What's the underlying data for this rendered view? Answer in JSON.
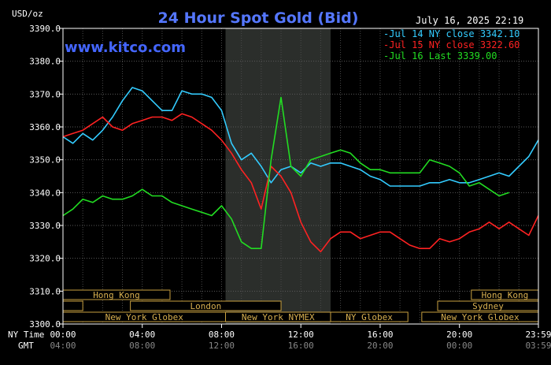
{
  "chart_data": {
    "type": "line",
    "title": "24 Hour Spot Gold (Bid)",
    "ylabel": "USD/oz",
    "website": "www.kitco.com",
    "timestamp": "July 16, 2025 22:19",
    "ylim": [
      3300,
      3390
    ],
    "yticks": [
      "3390.0",
      "3380.0",
      "3370.0",
      "3360.0",
      "3350.0",
      "3340.0",
      "3330.0",
      "3320.0",
      "3310.0",
      "3300.0"
    ],
    "x_row_labels": {
      "ny": "NY Time",
      "gmt": "GMT"
    },
    "xticks_ny": [
      "00:00",
      "04:00",
      "08:00",
      "12:00",
      "16:00",
      "20:00",
      "23:59"
    ],
    "xticks_gmt": [
      "04:00",
      "08:00",
      "12:00",
      "16:00",
      "20:00",
      "00:00",
      "03:59"
    ],
    "xtick_hours": [
      0,
      4,
      8,
      12,
      16,
      20,
      23.983
    ],
    "shaded_hours": [
      8.2,
      13.5
    ],
    "legend": [
      {
        "label": "Jul 14 NY close 3342.10",
        "color": "#33ccff"
      },
      {
        "label": "Jul 15 NY close 3322.60",
        "color": "#ff2222"
      },
      {
        "label": "Jul 16 Last 3339.00",
        "color": "#22dd22"
      }
    ],
    "sessions": [
      {
        "label": "Hong Kong",
        "start": 0,
        "end": 5.4,
        "row": 0
      },
      {
        "label": "Hong Kong",
        "start": 20.6,
        "end": 23.983,
        "row": 0
      },
      {
        "label": "",
        "start": 0,
        "end": 1.0,
        "row": 1
      },
      {
        "label": "London",
        "start": 3.4,
        "end": 11.0,
        "row": 1
      },
      {
        "label": "Sydney",
        "start": 18.9,
        "end": 23.983,
        "row": 1
      },
      {
        "label": "New York Globex",
        "start": 0,
        "end": 8.2,
        "row": 2
      },
      {
        "label": "New York NYMEX",
        "start": 8.2,
        "end": 13.5,
        "row": 2
      },
      {
        "label": "NY Globex",
        "start": 13.5,
        "end": 17.4,
        "row": 2
      },
      {
        "label": "New York Globex",
        "start": 18.1,
        "end": 23.983,
        "row": 2
      }
    ],
    "series": [
      {
        "name": "Jul 14",
        "color": "#33ccff",
        "x": [
          0,
          0.5,
          1.0,
          1.5,
          2.0,
          2.5,
          3.0,
          3.5,
          4.0,
          4.5,
          5.0,
          5.5,
          6.0,
          6.5,
          7.0,
          7.5,
          8.0,
          8.5,
          9.0,
          9.5,
          10.0,
          10.5,
          11.0,
          11.5,
          12.0,
          12.5,
          13.0,
          13.5,
          14.0,
          14.5,
          15.0,
          15.5,
          16.0,
          16.5,
          17.0,
          17.5,
          18.0,
          18.5,
          19.0,
          19.5,
          20.0,
          20.5,
          21.0,
          21.5,
          22.0,
          22.5,
          23.0,
          23.5,
          23.98
        ],
        "y": [
          3357,
          3355,
          3358,
          3356,
          3359,
          3363,
          3368,
          3372,
          3371,
          3368,
          3365,
          3365,
          3371,
          3370,
          3370,
          3369,
          3365,
          3355,
          3350,
          3352,
          3348,
          3343,
          3347,
          3348,
          3346,
          3349,
          3348,
          3349,
          3349,
          3348,
          3347,
          3345,
          3344,
          3342,
          3342,
          3342,
          3342,
          3343,
          3343,
          3344,
          3343,
          3343,
          3344,
          3345,
          3346,
          3345,
          3348,
          3351,
          3356
        ]
      },
      {
        "name": "Jul 15",
        "color": "#ff2222",
        "x": [
          0,
          0.5,
          1.0,
          1.5,
          2.0,
          2.5,
          3.0,
          3.5,
          4.0,
          4.5,
          5.0,
          5.5,
          6.0,
          6.5,
          7.0,
          7.5,
          8.0,
          8.5,
          9.0,
          9.5,
          10.0,
          10.5,
          11.0,
          11.5,
          12.0,
          12.5,
          13.0,
          13.5,
          14.0,
          14.5,
          15.0,
          15.5,
          16.0,
          16.5,
          17.0,
          17.5,
          18.0,
          18.5,
          19.0,
          19.5,
          20.0,
          20.5,
          21.0,
          21.5,
          22.0,
          22.5,
          23.0,
          23.5,
          23.98
        ],
        "y": [
          3357,
          3358,
          3359,
          3361,
          3363,
          3360,
          3359,
          3361,
          3362,
          3363,
          3363,
          3362,
          3364,
          3363,
          3361,
          3359,
          3356,
          3352,
          3347,
          3343,
          3335,
          3348,
          3345,
          3340,
          3331,
          3325,
          3322,
          3326,
          3328,
          3328,
          3326,
          3327,
          3328,
          3328,
          3326,
          3324,
          3323,
          3323,
          3326,
          3325,
          3326,
          3328,
          3329,
          3331,
          3329,
          3331,
          3329,
          3327,
          3333
        ]
      },
      {
        "name": "Jul 16",
        "color": "#22dd22",
        "x": [
          0,
          0.5,
          1.0,
          1.5,
          2.0,
          2.5,
          3.0,
          3.5,
          4.0,
          4.5,
          5.0,
          5.5,
          6.0,
          6.5,
          7.0,
          7.5,
          8.0,
          8.5,
          9.0,
          9.5,
          10.0,
          10.5,
          11.0,
          11.5,
          12.0,
          12.5,
          13.0,
          13.5,
          14.0,
          14.5,
          15.0,
          15.5,
          16.0,
          16.5,
          17.0,
          17.5,
          18.0,
          18.5,
          19.0,
          19.5,
          20.0,
          20.5,
          21.0,
          21.5,
          22.0,
          22.5
        ],
        "y": [
          3333,
          3335,
          3338,
          3337,
          3339,
          3338,
          3338,
          3339,
          3341,
          3339,
          3339,
          3337,
          3336,
          3335,
          3334,
          3333,
          3336,
          3332,
          3325,
          3323,
          3323,
          3350,
          3369,
          3348,
          3345,
          3350,
          3351,
          3352,
          3353,
          3352,
          3349,
          3347,
          3347,
          3346,
          3346,
          3346,
          3346,
          3350,
          3349,
          3348,
          3346,
          3342,
          3343,
          3341,
          3339,
          3340
        ]
      }
    ]
  }
}
